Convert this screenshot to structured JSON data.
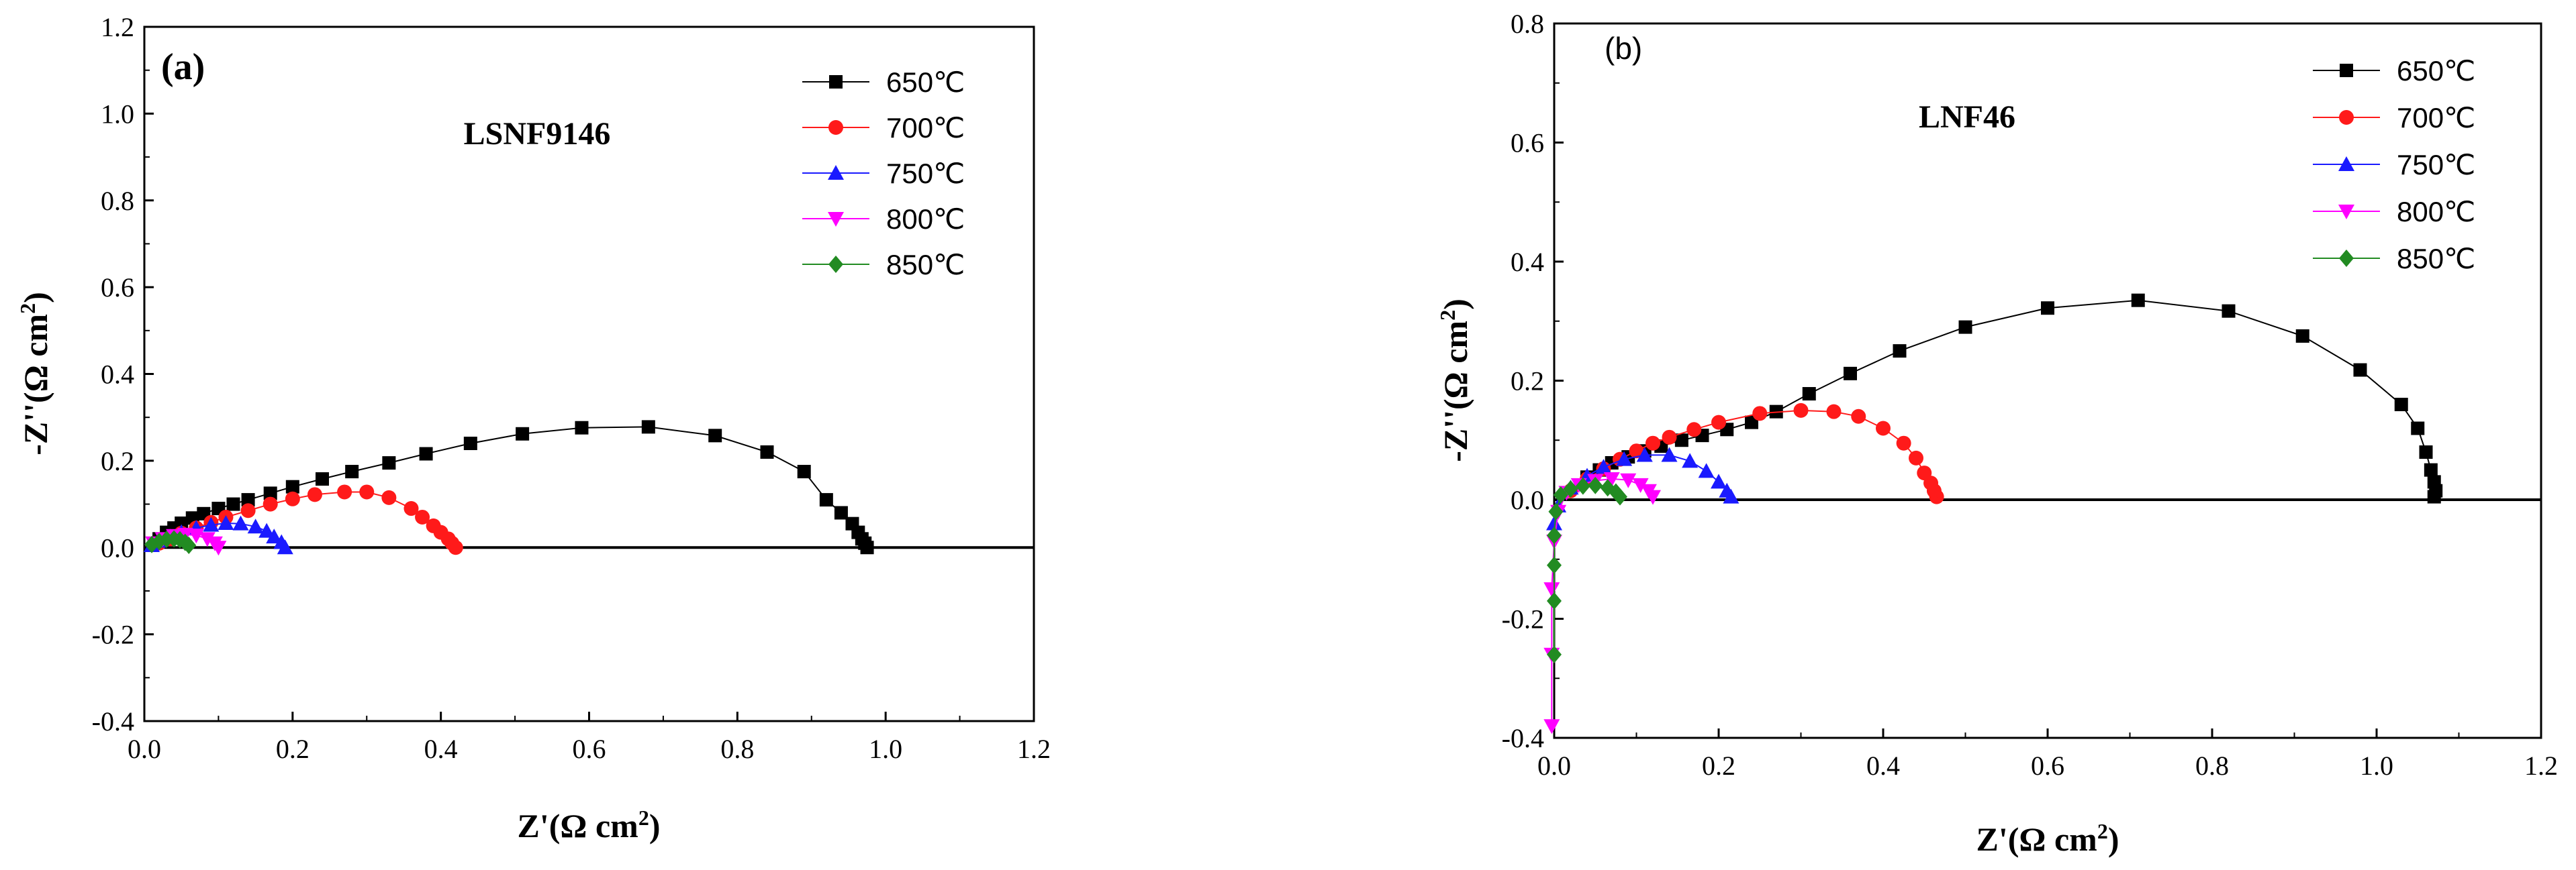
{
  "chart_data": [
    {
      "type": "scatter",
      "panel_label": "(a)",
      "sample": "LSNF9146",
      "xlabel": "Z'(Ω cm",
      "xlabel_sup": "2",
      "xlabel_close": ")",
      "ylabel": "-Z''(Ω cm",
      "ylabel_sup": "2",
      "ylabel_close": ")",
      "xlim": [
        0.0,
        1.2
      ],
      "ylim": [
        -0.4,
        1.2
      ],
      "xticks": [
        "0.0",
        "0.2",
        "0.4",
        "0.6",
        "0.8",
        "1.0",
        "1.2"
      ],
      "yticks": [
        "-0.4",
        "-0.2",
        "0.0",
        "0.2",
        "0.4",
        "0.6",
        "0.8",
        "1.0",
        "1.2"
      ],
      "zero_line": true,
      "legend_position": "top-right",
      "series": [
        {
          "name": "650℃",
          "marker": "square",
          "color": "#000000",
          "x": [
            0.975,
            0.972,
            0.968,
            0.963,
            0.955,
            0.94,
            0.92,
            0.89,
            0.84,
            0.77,
            0.68,
            0.59,
            0.51,
            0.44,
            0.38,
            0.33,
            0.28,
            0.24,
            0.2,
            0.17,
            0.14,
            0.12,
            0.1,
            0.08,
            0.065,
            0.05,
            0.04,
            0.03,
            0.02
          ],
          "y": [
            0.0,
            0.01,
            0.02,
            0.035,
            0.055,
            0.08,
            0.11,
            0.175,
            0.22,
            0.258,
            0.278,
            0.276,
            0.262,
            0.24,
            0.216,
            0.195,
            0.175,
            0.158,
            0.14,
            0.125,
            0.11,
            0.1,
            0.09,
            0.078,
            0.068,
            0.056,
            0.045,
            0.035,
            0.02
          ]
        },
        {
          "name": "700℃",
          "marker": "circle",
          "color": "#ff1a1a",
          "x": [
            0.42,
            0.415,
            0.41,
            0.4,
            0.39,
            0.375,
            0.36,
            0.33,
            0.3,
            0.27,
            0.23,
            0.2,
            0.17,
            0.14,
            0.11,
            0.09,
            0.07,
            0.05,
            0.035,
            0.02
          ],
          "y": [
            0.0,
            0.01,
            0.02,
            0.035,
            0.05,
            0.07,
            0.09,
            0.115,
            0.128,
            0.128,
            0.122,
            0.112,
            0.1,
            0.085,
            0.07,
            0.058,
            0.045,
            0.033,
            0.02,
            0.01
          ]
        },
        {
          "name": "750℃",
          "marker": "triangle-up",
          "color": "#1a1aff",
          "x": [
            0.19,
            0.185,
            0.175,
            0.165,
            0.15,
            0.13,
            0.11,
            0.09,
            0.07,
            0.05,
            0.035,
            0.02,
            0.01
          ],
          "y": [
            0.0,
            0.012,
            0.025,
            0.038,
            0.048,
            0.055,
            0.056,
            0.052,
            0.045,
            0.035,
            0.025,
            0.015,
            0.005
          ]
        },
        {
          "name": "800℃",
          "marker": "triangle-down",
          "color": "#ff00ff",
          "x": [
            0.1,
            0.095,
            0.085,
            0.07,
            0.055,
            0.04,
            0.025,
            0.012
          ],
          "y": [
            0.0,
            0.01,
            0.02,
            0.028,
            0.03,
            0.027,
            0.02,
            0.01
          ]
        },
        {
          "name": "850℃",
          "marker": "diamond",
          "color": "#228b22",
          "x": [
            0.06,
            0.055,
            0.048,
            0.04,
            0.03,
            0.02,
            0.01
          ],
          "y": [
            0.005,
            0.012,
            0.018,
            0.02,
            0.019,
            0.014,
            0.007
          ]
        }
      ]
    },
    {
      "type": "scatter",
      "panel_label": "(b)",
      "sample": "LNF46",
      "xlabel": "Z'(Ω cm",
      "xlabel_sup": "2",
      "xlabel_close": ")",
      "ylabel": "-Z''(Ω cm",
      "ylabel_sup": "2",
      "ylabel_close": ")",
      "xlim": [
        0.0,
        1.2
      ],
      "ylim": [
        -0.4,
        0.8
      ],
      "xticks": [
        "0.0",
        "0.2",
        "0.4",
        "0.6",
        "0.8",
        "1.0",
        "1.2"
      ],
      "yticks": [
        "-0.4",
        "-0.2",
        "0.0",
        "0.2",
        "0.4",
        "0.6",
        "0.8"
      ],
      "zero_line": true,
      "legend_position": "top-right",
      "series": [
        {
          "name": "650℃",
          "marker": "square",
          "color": "#000000",
          "x": [
            1.07,
            1.072,
            1.07,
            1.066,
            1.06,
            1.05,
            1.03,
            0.98,
            0.91,
            0.82,
            0.71,
            0.6,
            0.5,
            0.42,
            0.36,
            0.31,
            0.27,
            0.24,
            0.21,
            0.18,
            0.155,
            0.13,
            0.11,
            0.09,
            0.07,
            0.055,
            0.04
          ],
          "y": [
            0.005,
            0.015,
            0.03,
            0.05,
            0.08,
            0.12,
            0.16,
            0.218,
            0.275,
            0.317,
            0.335,
            0.322,
            0.29,
            0.25,
            0.212,
            0.178,
            0.148,
            0.13,
            0.118,
            0.108,
            0.1,
            0.09,
            0.082,
            0.072,
            0.062,
            0.05,
            0.038
          ]
        },
        {
          "name": "700℃",
          "marker": "circle",
          "color": "#ff1a1a",
          "x": [
            0.465,
            0.462,
            0.458,
            0.45,
            0.44,
            0.425,
            0.4,
            0.37,
            0.34,
            0.3,
            0.25,
            0.2,
            0.17,
            0.14,
            0.12,
            0.1,
            0.08,
            0.06,
            0.04,
            0.02
          ],
          "y": [
            0.005,
            0.015,
            0.028,
            0.045,
            0.07,
            0.095,
            0.12,
            0.14,
            0.148,
            0.15,
            0.145,
            0.13,
            0.118,
            0.105,
            0.095,
            0.082,
            0.068,
            0.052,
            0.035,
            0.015
          ]
        },
        {
          "name": "750℃",
          "marker": "triangle-up",
          "color": "#1a1aff",
          "x": [
            0.215,
            0.21,
            0.2,
            0.185,
            0.165,
            0.14,
            0.11,
            0.085,
            0.06,
            0.04,
            0.02,
            0.005,
            0.0
          ],
          "y": [
            0.005,
            0.015,
            0.03,
            0.048,
            0.065,
            0.075,
            0.075,
            0.068,
            0.055,
            0.04,
            0.02,
            -0.01,
            -0.04
          ]
        },
        {
          "name": "800℃",
          "marker": "triangle-down",
          "color": "#ff00ff",
          "x": [
            0.12,
            0.115,
            0.105,
            0.09,
            0.07,
            0.05,
            0.03,
            0.015,
            0.005,
            0.0,
            -0.003,
            -0.003,
            -0.003
          ],
          "y": [
            0.005,
            0.015,
            0.025,
            0.033,
            0.035,
            0.032,
            0.025,
            0.012,
            -0.02,
            -0.07,
            -0.15,
            -0.26,
            -0.38
          ]
        },
        {
          "name": "850℃",
          "marker": "diamond",
          "color": "#228b22",
          "x": [
            0.08,
            0.075,
            0.065,
            0.05,
            0.035,
            0.02,
            0.008,
            0.002,
            0.0,
            0.0,
            0.0,
            0.0
          ],
          "y": [
            0.005,
            0.013,
            0.02,
            0.024,
            0.023,
            0.018,
            0.008,
            -0.02,
            -0.06,
            -0.11,
            -0.17,
            -0.26
          ]
        }
      ]
    }
  ]
}
